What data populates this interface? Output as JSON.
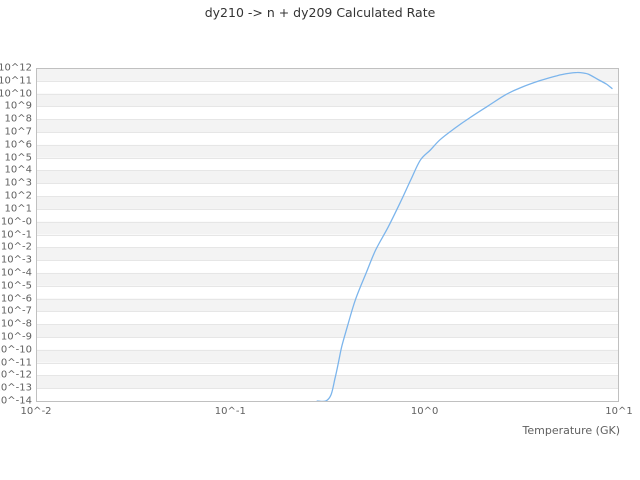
{
  "title": "dy210 -> n + dy209 Calculated Rate",
  "colors": {
    "line": "#7cb5ec",
    "band": "#f3f3f3",
    "grid": "#e6e6e6",
    "axis_border": "#c0c0c0",
    "title_text": "#333333",
    "label_text": "#606060",
    "background": "#ffffff"
  },
  "chart_data": {
    "type": "line",
    "title": "dy210 -> n + dy209 Calculated Rate",
    "xlabel": "Temperature (GK)",
    "ylabel": "",
    "x_scale": "log10",
    "y_scale": "log10",
    "xlim_log10": [
      -2,
      1
    ],
    "ylim_log10": [
      -14,
      12
    ],
    "x_ticks": {
      "labels": [
        "10^-2",
        "10^-1",
        "10^0",
        "10^1"
      ],
      "log10_values": [
        -2,
        -1,
        0,
        1
      ]
    },
    "y_ticks": {
      "labels": [
        "10^12",
        "10^11",
        "10^10",
        "10^9",
        "10^8",
        "10^7",
        "10^6",
        "10^5",
        "10^4",
        "10^3",
        "10^2",
        "10^1",
        "10^-0",
        "10^-1",
        "10^-2",
        "10^-3",
        "10^-4",
        "10^-5",
        "10^-6",
        "10^-7",
        "10^-8",
        "10^-9",
        "10^-10",
        "10^-11",
        "10^-12",
        "10^-13",
        "10^-14"
      ],
      "log10_values": [
        12,
        11,
        10,
        9,
        8,
        7,
        6,
        5,
        4,
        3,
        2,
        1,
        0,
        -1,
        -2,
        -3,
        -4,
        -5,
        -6,
        -7,
        -8,
        -9,
        -10,
        -11,
        -12,
        -13,
        -14
      ]
    },
    "grid": "horizontal-only",
    "alternate_bands": true,
    "legend": "none",
    "series": [
      {
        "name": "Calculated Rate",
        "color": "#7cb5ec",
        "x_gk": [
          0.28,
          0.31,
          0.33,
          0.345,
          0.36,
          0.375,
          0.4,
          0.44,
          0.5,
          0.56,
          0.65,
          0.76,
          0.85,
          0.95,
          1.07,
          1.2,
          1.4,
          1.7,
          2.1,
          2.6,
          3.1,
          3.9,
          4.8,
          5.5,
          6.1,
          6.6,
          7.0,
          7.8,
          8.6,
          9.2
        ],
        "y_log10_rate": [
          -14,
          -14,
          -13.5,
          -12.3,
          -11.0,
          -9.7,
          -8.2,
          -6.1,
          -4.0,
          -2.2,
          -0.4,
          1.7,
          3.3,
          4.8,
          5.6,
          6.4,
          7.2,
          8.1,
          9.0,
          9.9,
          10.45,
          11.0,
          11.4,
          11.58,
          11.65,
          11.6,
          11.5,
          11.1,
          10.75,
          10.4
        ]
      }
    ]
  }
}
